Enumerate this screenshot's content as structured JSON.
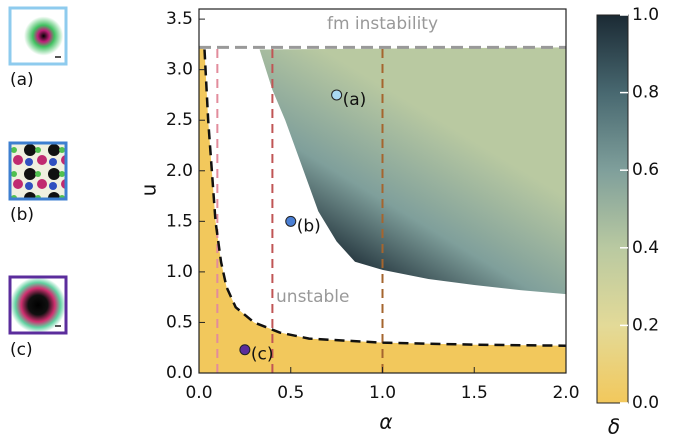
{
  "chart_data": {
    "type": "phase",
    "xlabel": "α",
    "ylabel": "u",
    "colorbar_label": "δ",
    "xlim": [
      0,
      2
    ],
    "ylim": [
      0,
      3.6
    ],
    "xticks": [
      {
        "value": 0,
        "label": "0.0"
      },
      {
        "value": 0.5,
        "label": "0.5"
      },
      {
        "value": 1,
        "label": "1.0"
      },
      {
        "value": 1.5,
        "label": "1.5"
      },
      {
        "value": 2,
        "label": "2.0"
      }
    ],
    "yticks": [
      {
        "value": 0,
        "label": "0.0"
      },
      {
        "value": 0.5,
        "label": "0.5"
      },
      {
        "value": 1,
        "label": "1.0"
      },
      {
        "value": 1.5,
        "label": "1.5"
      },
      {
        "value": 2,
        "label": "2.0"
      },
      {
        "value": 2.5,
        "label": "2.5"
      },
      {
        "value": 3,
        "label": "3.0"
      },
      {
        "value": 3.5,
        "label": "3.5"
      }
    ],
    "clim": [
      0,
      1
    ],
    "cticks": [
      {
        "value": 0,
        "label": "0.0"
      },
      {
        "value": 0.2,
        "label": "0.2"
      },
      {
        "value": 0.4,
        "label": "0.4"
      },
      {
        "value": 0.6,
        "label": "0.6"
      },
      {
        "value": 0.8,
        "label": "0.8"
      },
      {
        "value": 1,
        "label": "1.0"
      }
    ],
    "colormap": [
      "#f2c85c",
      "#e3da98",
      "#b9c9a1",
      "#7f9f9b",
      "#486870",
      "#1b2a34"
    ],
    "annotations": {
      "fm": "fm instability",
      "unstable": "unstable"
    },
    "hline": {
      "y": 3.22,
      "color": "#999999"
    },
    "vlines": [
      {
        "x": 0.1,
        "color": "#e28c9c"
      },
      {
        "x": 0.4,
        "color": "#c05555"
      },
      {
        "x": 1.0,
        "color": "#a5652e"
      }
    ],
    "stability_boundary": {
      "x": [
        0.03,
        0.05,
        0.07,
        0.09,
        0.12,
        0.15,
        0.2,
        0.3,
        0.44,
        0.6,
        1.0,
        1.5,
        2.0
      ],
      "y": [
        3.2,
        2.5,
        2.0,
        1.5,
        1.1,
        0.85,
        0.65,
        0.5,
        0.4,
        0.34,
        0.3,
        0.28,
        0.27
      ]
    },
    "region_edge": {
      "x": [
        0.33,
        0.4,
        0.47,
        0.55,
        0.65,
        0.75,
        0.85,
        1.0,
        1.25,
        1.5,
        1.75,
        2.0
      ],
      "y": [
        3.2,
        2.8,
        2.5,
        2.1,
        1.6,
        1.3,
        1.1,
        1.02,
        0.93,
        0.87,
        0.82,
        0.78
      ]
    },
    "points": [
      {
        "label": "(a)",
        "x": 0.75,
        "y": 2.75,
        "color": "#a9d9f2"
      },
      {
        "label": "(b)",
        "x": 0.5,
        "y": 1.5,
        "color": "#4a7fd4"
      },
      {
        "label": "(c)",
        "x": 0.25,
        "y": 0.23,
        "color": "#5b2d9c"
      }
    ],
    "panel_labels": [
      "(a)",
      "(b)",
      "(c)"
    ]
  }
}
